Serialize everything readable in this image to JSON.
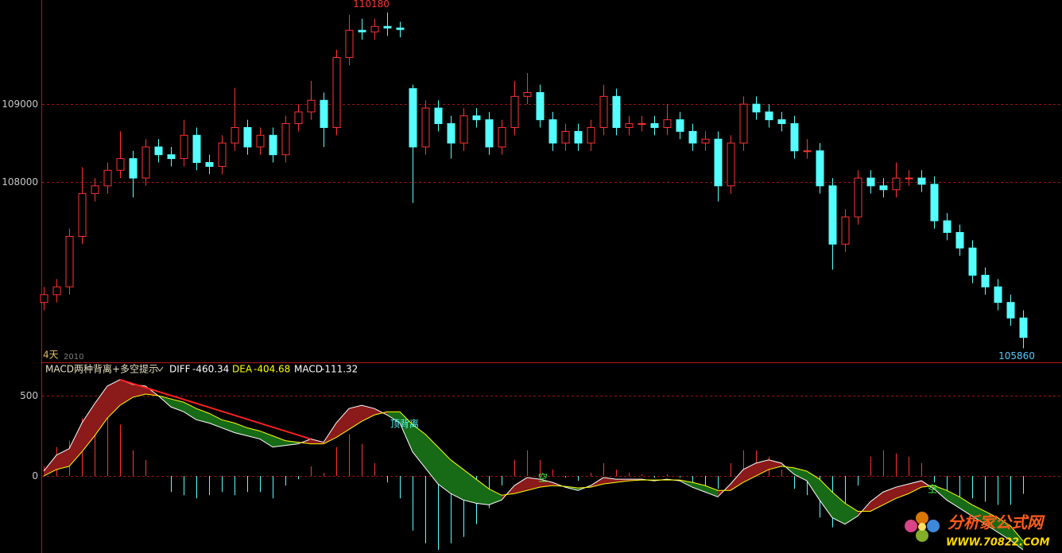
{
  "chart_data": [
    {
      "type": "candlestick",
      "period_label": "4天",
      "sub_label": "2010",
      "high_label": 110180,
      "low_label": 105860,
      "up_color": "#ff3232",
      "down_color": "#54ffff",
      "ylim": [
        105680,
        110340
      ],
      "yticks": [
        108000,
        109000
      ],
      "grid": true,
      "open": [
        106450,
        106550,
        106650,
        107300,
        107850,
        107950,
        108150,
        108300,
        108050,
        108450,
        108350,
        108300,
        108600,
        108250,
        108200,
        108500,
        108700,
        108450,
        108600,
        108350,
        108750,
        108900,
        109050,
        108700,
        109600,
        109950,
        109930,
        110000,
        109980,
        109200,
        108450,
        108950,
        108750,
        108500,
        108850,
        108800,
        108450,
        108700,
        109100,
        109150,
        108800,
        108500,
        108650,
        108500,
        108700,
        109100,
        108700,
        108750,
        108750,
        108700,
        108800,
        108650,
        108500,
        108550,
        107950,
        108500,
        109000,
        108900,
        108800,
        108750,
        108400,
        108400,
        107950,
        107200,
        107550,
        108050,
        107950,
        107900,
        108050,
        108050,
        107970,
        107500,
        107350,
        107150,
        106800,
        106650,
        106450,
        106250
      ],
      "high": [
        106650,
        106750,
        107400,
        108190,
        108050,
        108250,
        108650,
        108400,
        108550,
        108550,
        108450,
        108800,
        108700,
        108350,
        108600,
        109210,
        108800,
        108700,
        108700,
        108850,
        109000,
        109300,
        109150,
        109700,
        110150,
        110100,
        110100,
        110180,
        110060,
        109250,
        109050,
        109050,
        108850,
        108950,
        108950,
        108900,
        108800,
        109300,
        109400,
        109250,
        108900,
        108750,
        108750,
        108800,
        109250,
        109200,
        108850,
        108850,
        108850,
        109000,
        108900,
        108750,
        108650,
        108650,
        108600,
        109100,
        109100,
        109000,
        108900,
        108850,
        108550,
        108500,
        108050,
        107650,
        108150,
        108150,
        108050,
        108250,
        108150,
        108150,
        108070,
        107600,
        107450,
        107250,
        106900,
        106750,
        106550,
        106350
      ],
      "low": [
        106350,
        106450,
        106550,
        107200,
        107750,
        107850,
        108050,
        107800,
        107950,
        108250,
        108200,
        108200,
        108150,
        108100,
        108100,
        108400,
        108350,
        108350,
        108250,
        108250,
        108650,
        108800,
        108450,
        108600,
        109500,
        109830,
        109830,
        109880,
        109860,
        107730,
        108350,
        108650,
        108300,
        108400,
        108700,
        108350,
        108350,
        108600,
        109000,
        108700,
        108400,
        108400,
        108400,
        108400,
        108600,
        108600,
        108600,
        108650,
        108600,
        108600,
        108550,
        108400,
        108400,
        107750,
        107850,
        108400,
        108800,
        108700,
        108650,
        108300,
        108300,
        107850,
        106870,
        107100,
        107450,
        107850,
        107800,
        107800,
        107950,
        107870,
        107400,
        107250,
        107050,
        106700,
        106550,
        106350,
        106150,
        105860
      ],
      "close": [
        106550,
        106650,
        107300,
        107850,
        107950,
        108150,
        108300,
        108050,
        108450,
        108350,
        108300,
        108600,
        108250,
        108200,
        108500,
        108700,
        108450,
        108600,
        108350,
        108750,
        108900,
        109050,
        108700,
        109600,
        109950,
        109930,
        110000,
        109980,
        109960,
        108450,
        108950,
        108750,
        108500,
        108850,
        108800,
        108450,
        108700,
        109100,
        109150,
        108800,
        108500,
        108650,
        108500,
        108700,
        109100,
        108700,
        108750,
        108750,
        108700,
        108800,
        108650,
        108500,
        108550,
        107950,
        108500,
        109000,
        108900,
        108800,
        108750,
        108400,
        108400,
        107950,
        107200,
        107550,
        108050,
        107950,
        107900,
        108050,
        108050,
        107970,
        107500,
        107350,
        107150,
        106800,
        106650,
        106450,
        106250,
        106000
      ]
    },
    {
      "type": "macd",
      "title": "MACD两种背离+多空提示",
      "ylim": [
        -480,
        703
      ],
      "yticks": [
        0,
        500
      ],
      "grid": true,
      "up_color": "#ff3232",
      "down_color": "#54ffff",
      "fill_up_color": "#8b1a1a",
      "fill_down_color": "#176b17",
      "annotations": [
        "顶背离",
        "空",
        "空"
      ],
      "watermark": [
        "分析家公式网",
        "WWW.70822.COM"
      ],
      "series": [
        {
          "name": "DIFF",
          "color": "#ffffff",
          "values": [
            30,
            130,
            170,
            330,
            450,
            560,
            600,
            570,
            560,
            500,
            430,
            400,
            350,
            330,
            300,
            270,
            250,
            230,
            180,
            190,
            200,
            230,
            210,
            330,
            420,
            440,
            420,
            380,
            330,
            150,
            50,
            -50,
            -110,
            -150,
            -170,
            -180,
            -150,
            -60,
            -10,
            -20,
            -40,
            -70,
            -90,
            -60,
            -10,
            -20,
            -20,
            -20,
            -30,
            -20,
            -30,
            -70,
            -100,
            -130,
            -50,
            40,
            80,
            100,
            80,
            10,
            -30,
            -150,
            -260,
            -300,
            -250,
            -160,
            -100,
            -70,
            -50,
            -30,
            -80,
            -150,
            -200,
            -250,
            -300,
            -350,
            -400,
            -460.34
          ]
        },
        {
          "name": "DEA",
          "color": "#ffff00",
          "values": [
            0,
            40,
            60,
            150,
            250,
            360,
            440,
            490,
            510,
            500,
            480,
            460,
            420,
            390,
            350,
            330,
            300,
            280,
            250,
            220,
            210,
            200,
            200,
            240,
            290,
            340,
            380,
            400,
            400,
            320,
            260,
            180,
            100,
            40,
            -20,
            -80,
            -120,
            -110,
            -90,
            -70,
            -60,
            -65,
            -75,
            -70,
            -50,
            -40,
            -30,
            -25,
            -25,
            -25,
            -25,
            -40,
            -60,
            -90,
            -90,
            -40,
            0,
            40,
            60,
            50,
            30,
            -20,
            -100,
            -170,
            -220,
            -220,
            -180,
            -140,
            -110,
            -70,
            -60,
            -90,
            -130,
            -180,
            -220,
            -260,
            -310,
            -404.68
          ]
        },
        {
          "name": "MACD",
          "color": "#ffffff",
          "values": [
            60,
            180,
            220,
            360,
            400,
            400,
            320,
            160,
            100,
            0,
            -100,
            -120,
            -140,
            -120,
            -100,
            -120,
            -100,
            -100,
            -140,
            -60,
            -20,
            60,
            20,
            180,
            260,
            200,
            80,
            -40,
            -140,
            -340,
            -420,
            -460,
            -420,
            -380,
            -300,
            -200,
            -60,
            100,
            160,
            100,
            40,
            -10,
            -30,
            20,
            80,
            40,
            20,
            10,
            -10,
            10,
            -10,
            -60,
            -80,
            -80,
            80,
            160,
            160,
            120,
            40,
            -80,
            -120,
            -260,
            -320,
            -260,
            -60,
            120,
            160,
            140,
            120,
            80,
            -40,
            -120,
            -140,
            -140,
            -160,
            -180,
            -180,
            -111.32
          ]
        }
      ]
    }
  ]
}
